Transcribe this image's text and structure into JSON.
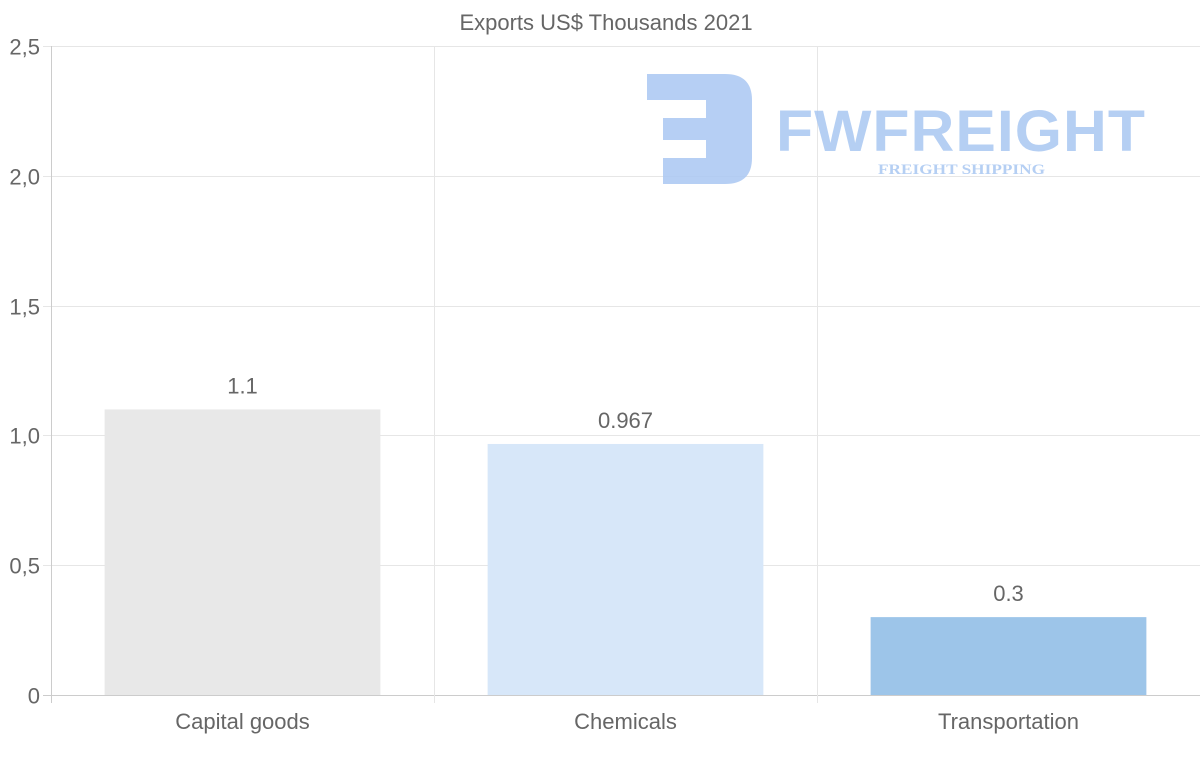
{
  "chart_data": {
    "type": "bar",
    "title": "Exports US$ Thousands 2021",
    "categories": [
      "Capital goods",
      "Chemicals",
      "Transportation"
    ],
    "values": [
      1.1,
      0.967,
      0.3
    ],
    "data_labels": [
      "1.1",
      "0.967",
      "0.3"
    ],
    "colors": [
      "#e8e8e8",
      "#d7e7f9",
      "#9dc5e9"
    ],
    "ylim": [
      0,
      2.5
    ],
    "yticks": [
      0,
      0.5,
      1.0,
      1.5,
      2.0,
      2.5
    ],
    "ytick_labels": [
      "0",
      "0,5",
      "1,0",
      "1,5",
      "2,0",
      "2,5"
    ],
    "xlabel": "",
    "ylabel": "",
    "grid": true,
    "legend": "none"
  },
  "watermark": {
    "name": "FWFREIGHT",
    "tagline": "FREIGHT SHIPPING",
    "color": "#a9c7f2"
  }
}
